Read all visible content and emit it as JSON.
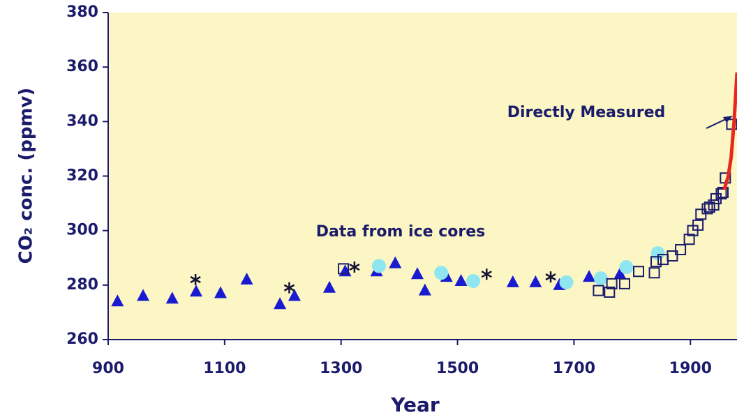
{
  "chart_data": {
    "type": "scatter",
    "xlabel": "Year",
    "ylabel": "CO₂ conc. (ppmv)",
    "annotations": [
      "Directly Measured",
      "Data from ice cores"
    ],
    "xlim": [
      900,
      1980
    ],
    "xticks": [
      900,
      1100,
      1300,
      1500,
      1700,
      1900
    ],
    "ylim": [
      260,
      380
    ],
    "yticks": [
      260,
      280,
      300,
      320,
      340,
      360,
      380
    ],
    "background": "#fbf6c3",
    "series": [
      {
        "marker": "triangle",
        "color": "#1a1ad0",
        "x": [
          916,
          960,
          1010,
          1051,
          1093,
          1138,
          1195,
          1220,
          1280,
          1307,
          1361,
          1393,
          1431,
          1444,
          1481,
          1506,
          1595,
          1634,
          1675,
          1726,
          1779
        ],
        "values": [
          274,
          276,
          275,
          277.6,
          277,
          282,
          273,
          276,
          279,
          285,
          285,
          288,
          284,
          278,
          283,
          281.5,
          281,
          281,
          280,
          283,
          284
        ]
      },
      {
        "marker": "circle",
        "color": "#8fe6f0",
        "x": [
          1365,
          1472,
          1527,
          1687,
          1746,
          1790,
          1844
        ],
        "values": [
          287,
          284.5,
          281.5,
          281,
          282.5,
          286.6,
          291.7
        ]
      },
      {
        "marker": "square",
        "color": "#1b1b6b",
        "x": [
          1304,
          1742,
          1761,
          1765,
          1787,
          1811,
          1838,
          1841,
          1853,
          1869,
          1883,
          1898,
          1904,
          1913,
          1918,
          1929,
          1933,
          1940,
          1944,
          1953,
          1956,
          1960,
          1971
        ],
        "values": [
          286,
          278,
          277.4,
          280.5,
          280.5,
          285,
          284.5,
          288.6,
          289.4,
          290.7,
          293,
          296.8,
          300,
          302,
          306,
          308,
          308.6,
          309.4,
          311.7,
          313.5,
          314,
          319.3,
          339
        ]
      },
      {
        "marker": "asterisk",
        "color": "#111133",
        "x": [
          1050,
          1211,
          1323,
          1550,
          1660
        ],
        "values": [
          282,
          279,
          286.6,
          284,
          283
        ]
      },
      {
        "marker": "line",
        "color": "#e8281c",
        "x": [
          1958,
          1965,
          1970,
          1975,
          1980
        ],
        "values": [
          315,
          320,
          327,
          340,
          358
        ]
      }
    ]
  }
}
